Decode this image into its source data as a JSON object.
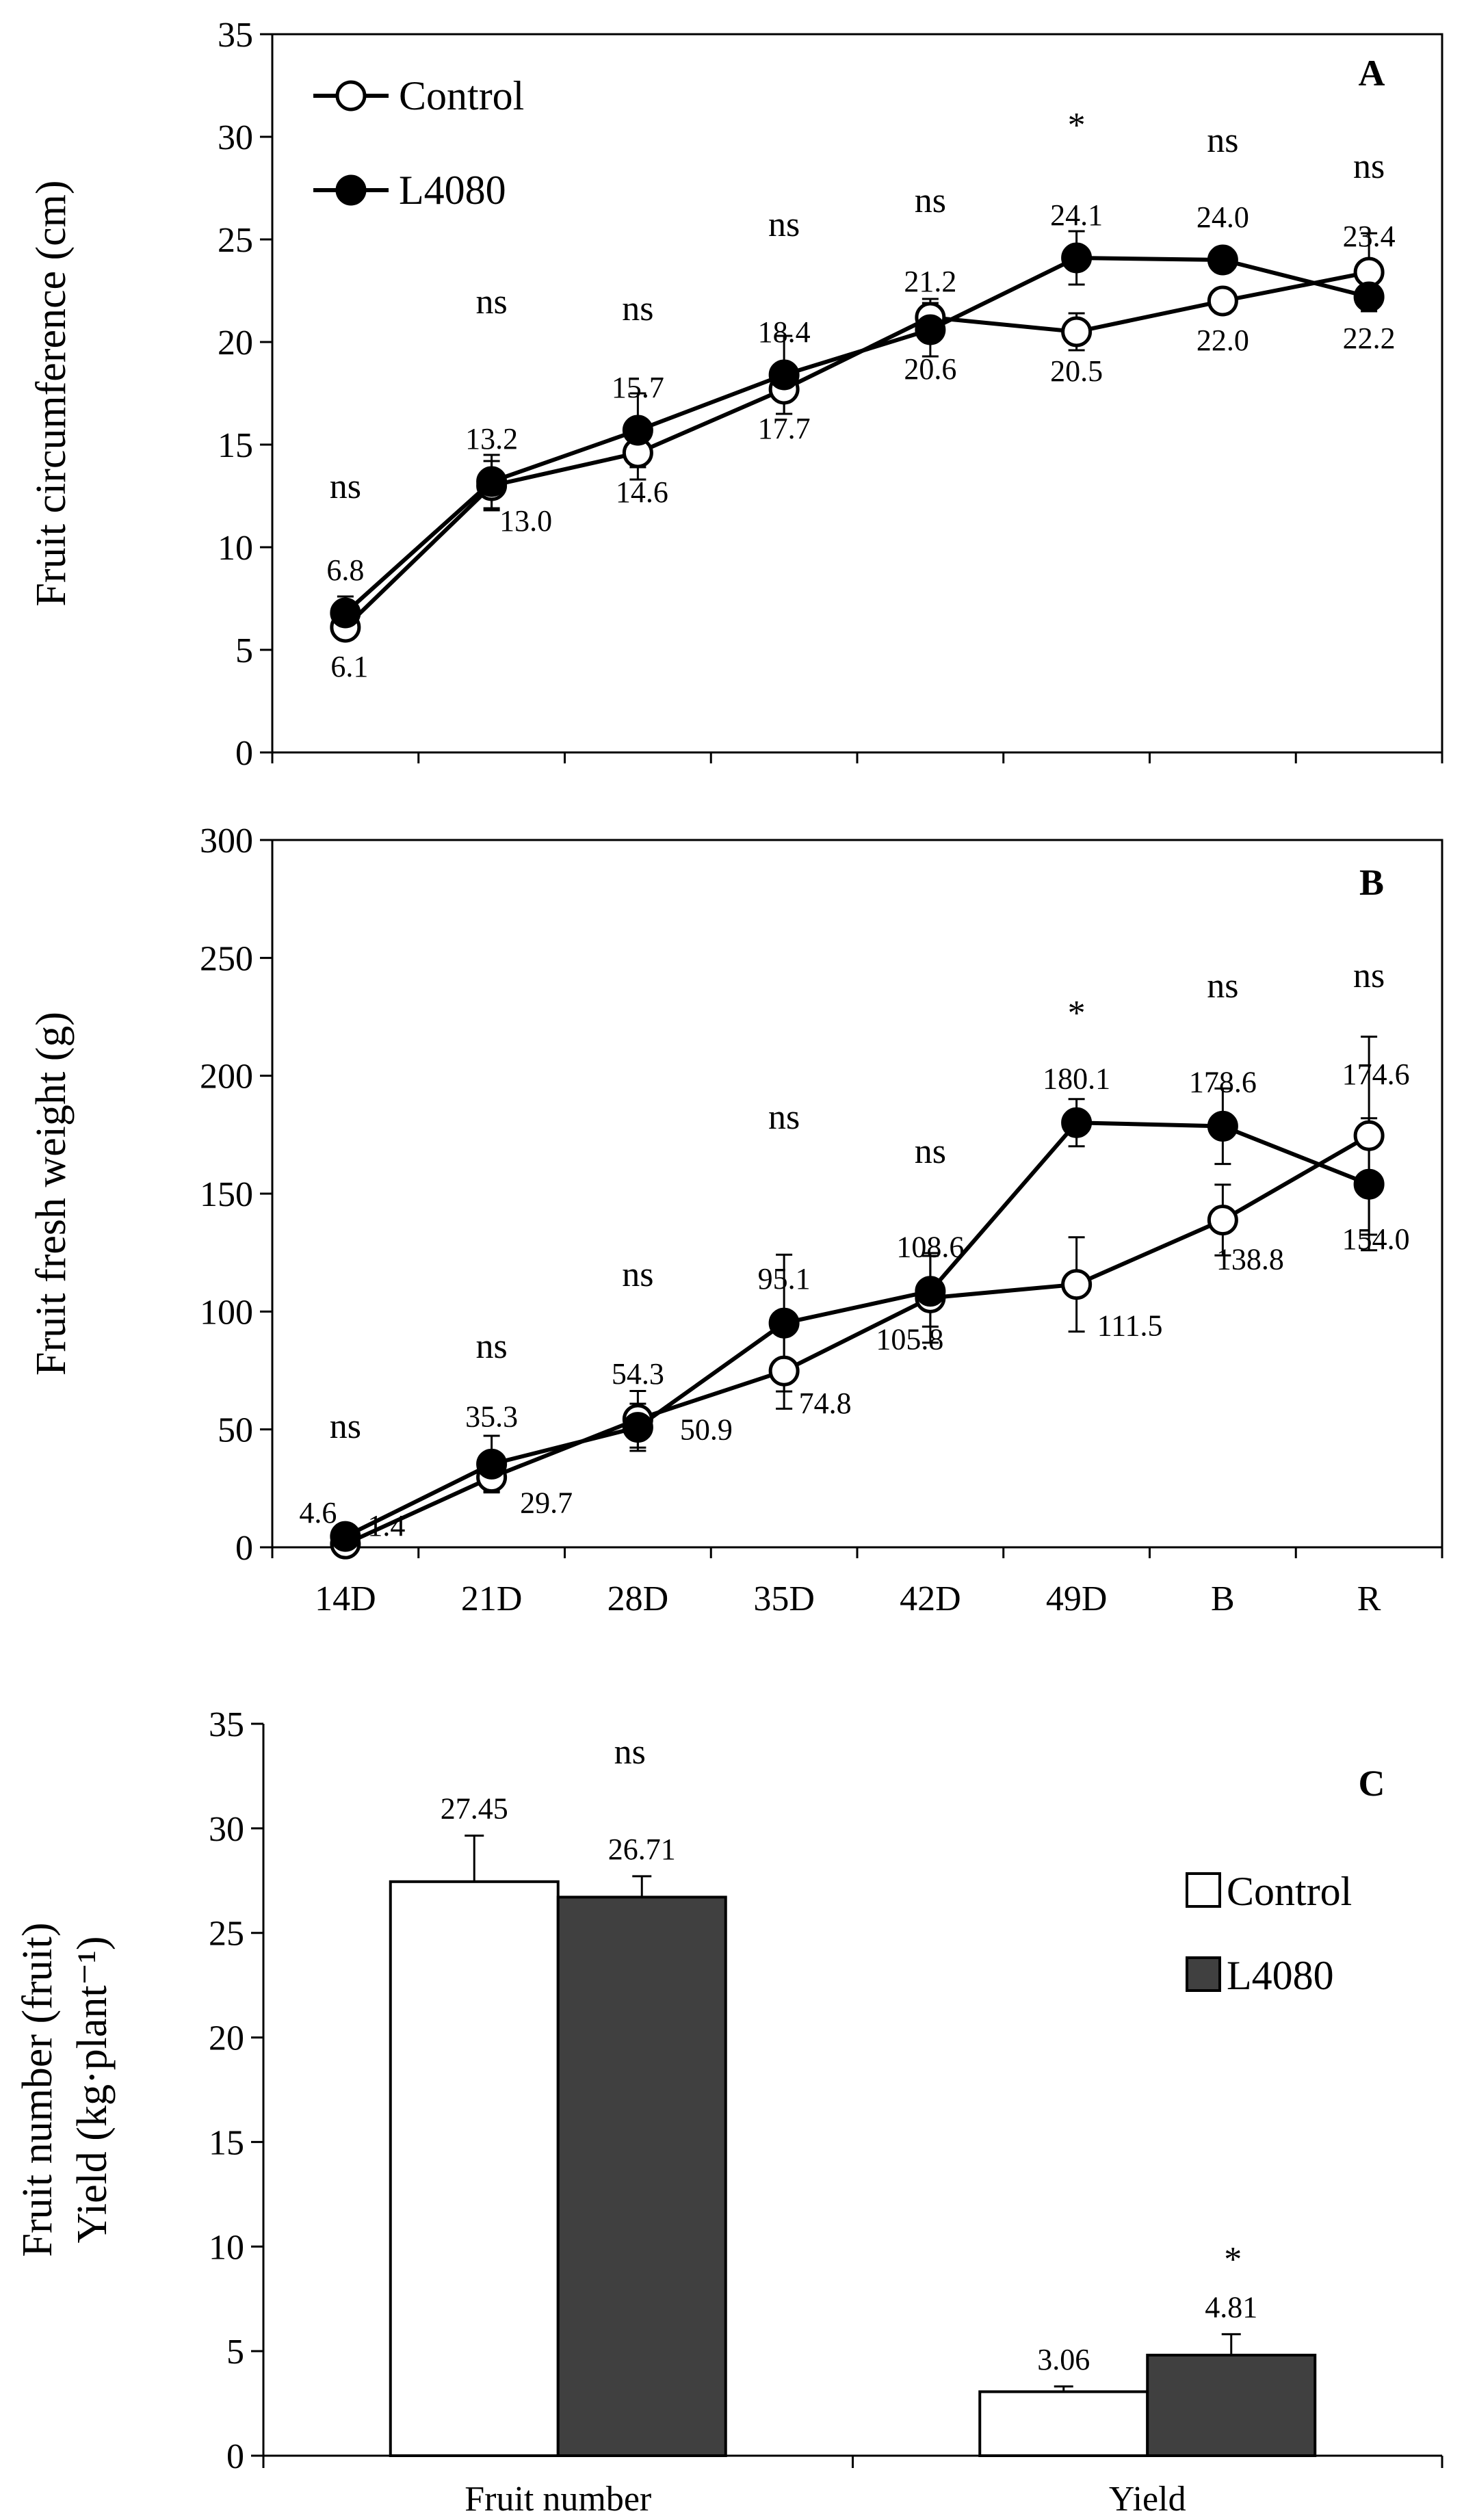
{
  "chart_data": [
    {
      "panel": "A",
      "type": "line",
      "ylabel": "Fruit circumference (cm)",
      "ylim": [
        0,
        35
      ],
      "yticks": [
        "0",
        "5",
        "10",
        "15",
        "20",
        "25",
        "30",
        "35"
      ],
      "categories": [
        "14D",
        "21D",
        "28D",
        "35D",
        "42D",
        "49D",
        "B",
        "R"
      ],
      "legend": {
        "position": "top-left",
        "entries": [
          "Control",
          "L4080"
        ]
      },
      "series": [
        {
          "name": "Control",
          "marker": "open-circle",
          "values": [
            6.1,
            13.0,
            14.6,
            17.7,
            21.2,
            20.5,
            22.0,
            23.4
          ],
          "errors": [
            0.5,
            1.2,
            1.3,
            1.2,
            0.9,
            0.9,
            0.6,
            1.9
          ],
          "labels": [
            "6.1",
            "13.0",
            "14.6",
            "17.7",
            "21.2",
            "20.5",
            "22.0",
            "23.4"
          ]
        },
        {
          "name": "L4080",
          "marker": "filled-circle",
          "values": [
            6.8,
            13.2,
            15.7,
            18.4,
            20.6,
            24.1,
            24.0,
            22.2
          ],
          "errors": [
            0.8,
            1.3,
            1.8,
            1.9,
            1.3,
            1.3,
            0.6,
            0.5
          ],
          "labels": [
            "6.8",
            "13.2",
            "15.7",
            "18.4",
            "20.6",
            "24.1",
            "24.0",
            "22.2"
          ]
        }
      ],
      "significance": [
        "ns",
        "ns",
        "ns",
        "ns",
        "ns",
        "*",
        "ns",
        "ns"
      ]
    },
    {
      "panel": "B",
      "type": "line",
      "ylabel": "Fruit fresh weight (g)",
      "ylim": [
        0,
        300
      ],
      "yticks": [
        "0",
        "50",
        "100",
        "150",
        "200",
        "250",
        "300"
      ],
      "categories": [
        "14D",
        "21D",
        "28D",
        "35D",
        "42D",
        "49D",
        "B",
        "R"
      ],
      "series": [
        {
          "name": "Control",
          "marker": "open-circle",
          "values": [
            1.4,
            29.7,
            54.3,
            74.8,
            105.8,
            111.5,
            138.8,
            174.6
          ],
          "errors": [
            1,
            6,
            12,
            16,
            19,
            20,
            15,
            42
          ],
          "labels": [
            "1.4",
            "29.7",
            "54.3",
            "74.8",
            "105.8",
            "111.5",
            "138.8",
            "174.6"
          ]
        },
        {
          "name": "L4080",
          "marker": "filled-circle",
          "values": [
            4.6,
            35.3,
            50.9,
            95.1,
            108.6,
            180.1,
            178.6,
            154.0
          ],
          "errors": [
            2,
            12,
            10,
            29,
            15,
            10,
            16,
            28
          ],
          "labels": [
            "4.6",
            "35.3",
            "50.9",
            "95.1",
            "108.6",
            "180.1",
            "178.6",
            "154.0"
          ]
        }
      ],
      "significance": [
        "ns",
        "ns",
        "ns",
        "ns",
        "ns",
        "*",
        "ns",
        "ns"
      ]
    },
    {
      "panel": "C",
      "type": "bar",
      "ylabel_line1": "Fruit number (fruit)",
      "ylabel_line2": "Yield (kg·plant⁻¹)",
      "ylim": [
        0,
        35
      ],
      "yticks": [
        "0",
        "5",
        "10",
        "15",
        "20",
        "25",
        "30",
        "35"
      ],
      "categories": [
        "Fruit number",
        "Yield"
      ],
      "legend": {
        "position": "right",
        "entries": [
          "Control",
          "L4080"
        ]
      },
      "series": [
        {
          "name": "Control",
          "color": "#ffffff",
          "values": [
            27.45,
            3.06
          ],
          "errors": [
            2.2,
            0.25
          ],
          "labels": [
            "27.45",
            "3.06"
          ]
        },
        {
          "name": "L4080",
          "color": "#404040",
          "values": [
            26.71,
            4.81
          ],
          "errors": [
            1.0,
            1.0
          ],
          "labels": [
            "26.71",
            "4.81"
          ]
        }
      ],
      "significance": [
        "ns",
        "*"
      ]
    }
  ]
}
